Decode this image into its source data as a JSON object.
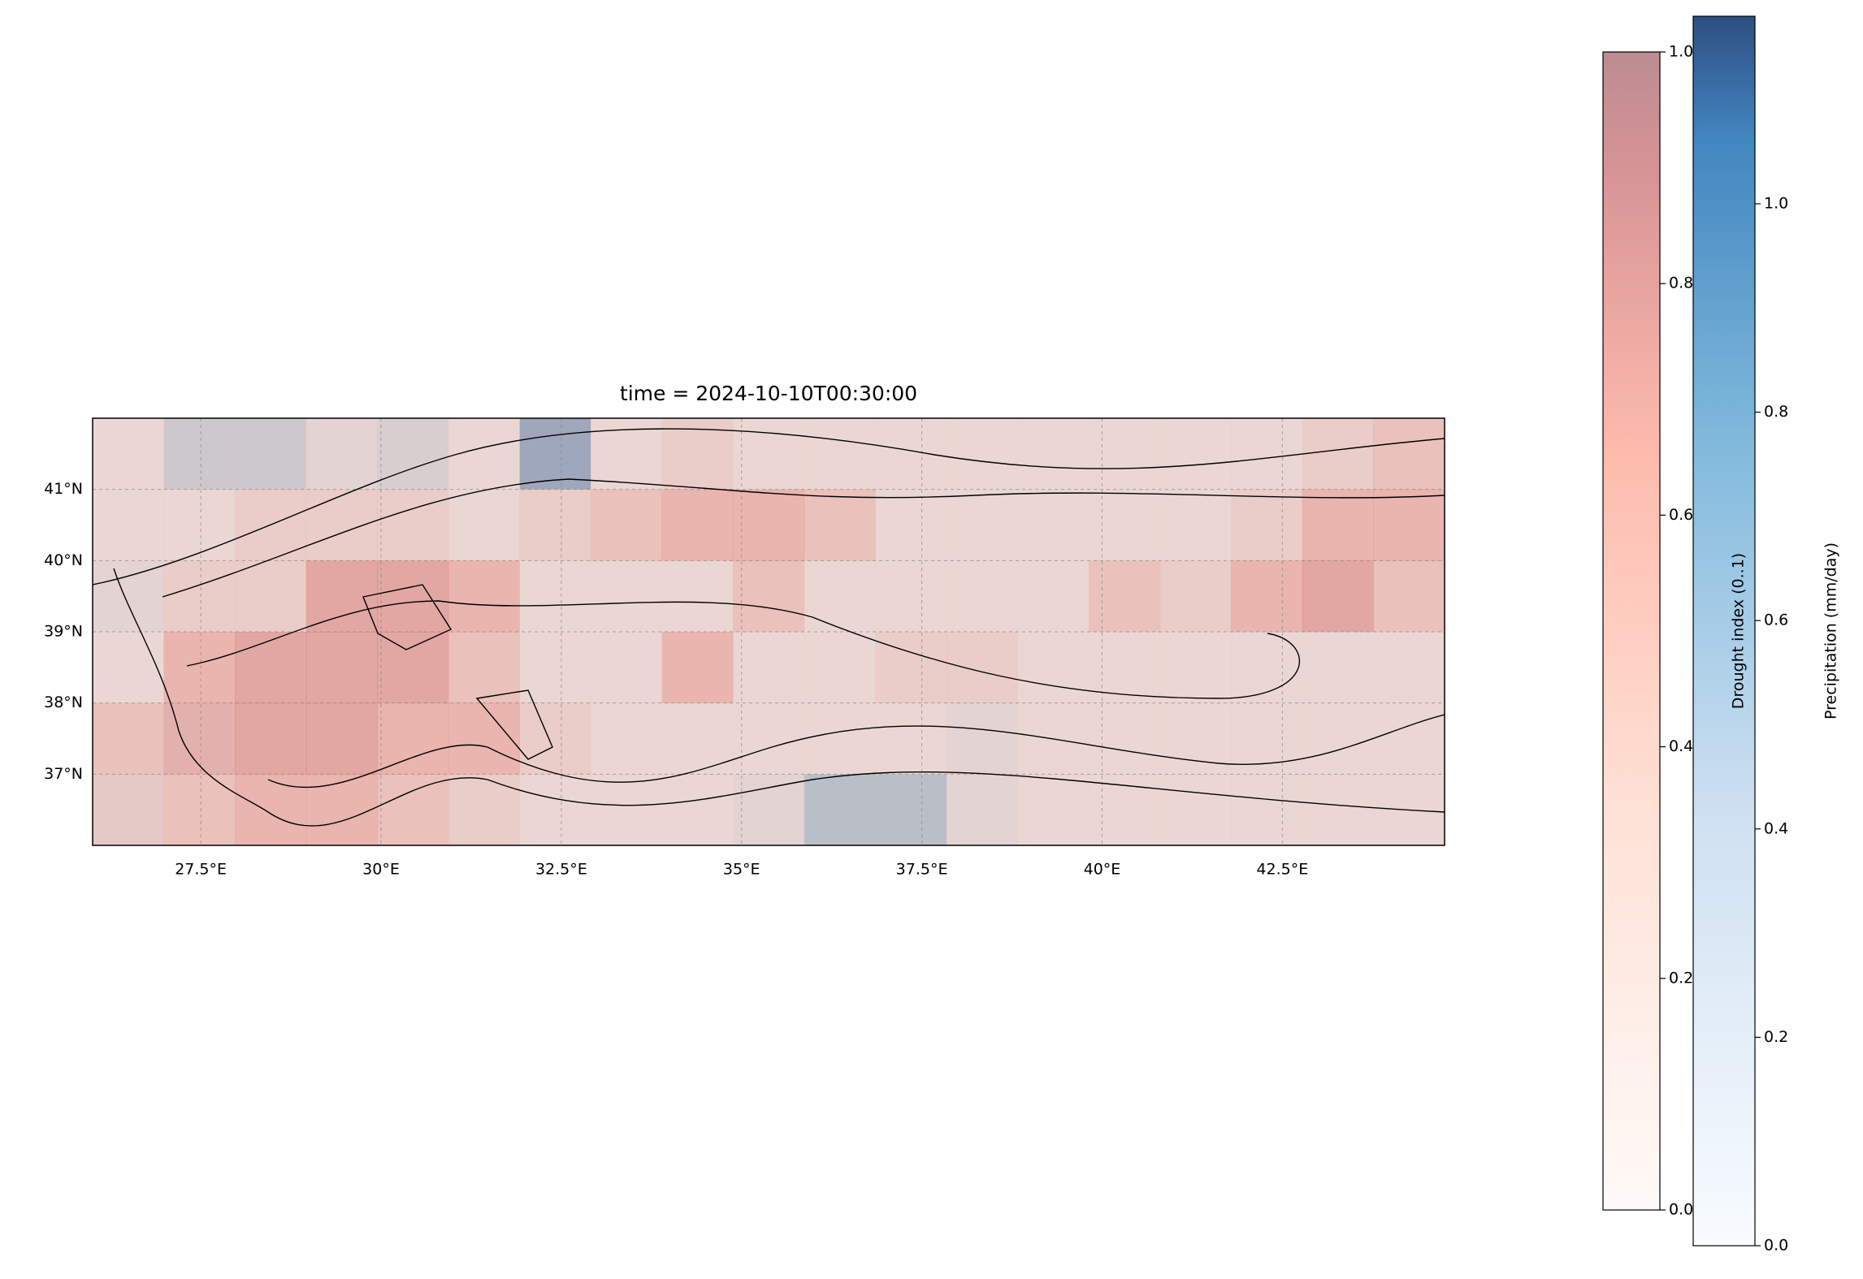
{
  "chart_data": {
    "type": "map",
    "title": "time = 2024-10-10T00:30:00",
    "xlim": [
      26,
      44.75
    ],
    "ylim": [
      36,
      42
    ],
    "xticks": [
      {
        "value": 27.5,
        "label": "27.5°E"
      },
      {
        "value": 30,
        "label": "30°E"
      },
      {
        "value": 32.5,
        "label": "32.5°E"
      },
      {
        "value": 35,
        "label": "35°E"
      },
      {
        "value": 37.5,
        "label": "37.5°E"
      },
      {
        "value": 40,
        "label": "40°E"
      },
      {
        "value": 42.5,
        "label": "42.5°E"
      }
    ],
    "yticks": [
      {
        "value": 37,
        "label": "37°N"
      },
      {
        "value": 38,
        "label": "38°N"
      },
      {
        "value": 39,
        "label": "39°N"
      },
      {
        "value": 40,
        "label": "40°N"
      },
      {
        "value": 41,
        "label": "41°N"
      }
    ],
    "grid": true,
    "drought": {
      "label": "Drought index (0..1)",
      "clim": [
        0,
        1
      ],
      "ticks": [
        {
          "value": 0,
          "label": "0.0"
        },
        {
          "value": 0.2,
          "label": "0.2"
        },
        {
          "value": 0.4,
          "label": "0.4"
        },
        {
          "value": 0.6,
          "label": "0.6"
        },
        {
          "value": 0.8,
          "label": "0.8"
        },
        {
          "value": 1,
          "label": "1.0"
        }
      ],
      "values": [
        [
          0.3,
          0.3,
          0.3,
          0.3,
          0.3,
          0.3,
          0.3,
          0.3,
          0.4,
          0.3,
          0.3,
          0.3,
          0.3,
          0.3,
          0.3,
          0.3,
          0.3,
          0.4,
          0.5
        ],
        [
          0.3,
          0.3,
          0.4,
          0.4,
          0.4,
          0.3,
          0.4,
          0.5,
          0.6,
          0.6,
          0.5,
          0.3,
          0.3,
          0.3,
          0.3,
          0.3,
          0.4,
          0.6,
          0.6
        ],
        [
          0.3,
          0.4,
          0.4,
          0.7,
          0.7,
          0.6,
          0.3,
          0.3,
          0.3,
          0.5,
          0.3,
          0.3,
          0.3,
          0.3,
          0.5,
          0.4,
          0.6,
          0.7,
          0.5
        ],
        [
          0.3,
          0.6,
          0.7,
          0.7,
          0.7,
          0.5,
          0.3,
          0.3,
          0.6,
          0.3,
          0.3,
          0.4,
          0.4,
          0.3,
          0.3,
          0.3,
          0.3,
          0.3,
          0.3
        ],
        [
          0.5,
          0.6,
          0.7,
          0.7,
          0.6,
          0.6,
          0.4,
          0.3,
          0.3,
          0.3,
          0.3,
          0.3,
          0.3,
          0.3,
          0.3,
          0.3,
          0.3,
          0.3,
          0.3
        ],
        [
          0.4,
          0.5,
          0.6,
          0.6,
          0.5,
          0.4,
          0.3,
          0.3,
          0.3,
          0.3,
          0.3,
          0.3,
          0.3,
          0.3,
          0.3,
          0.3,
          0.3,
          0.3,
          0.3
        ]
      ]
    },
    "precipitation": {
      "label": "Precipitation (mm/day)",
      "clim": [
        0,
        1.18
      ],
      "ticks": [
        {
          "value": 0,
          "label": "0.0"
        },
        {
          "value": 0.2,
          "label": "0.2"
        },
        {
          "value": 0.4,
          "label": "0.4"
        },
        {
          "value": 0.6,
          "label": "0.6"
        },
        {
          "value": 0.8,
          "label": "0.8"
        },
        {
          "value": 1,
          "label": "1.0"
        }
      ],
      "values": [
        [
          0.3,
          0.6,
          0.6,
          0.4,
          0.5,
          0.3,
          1.0,
          0.3,
          0.3,
          0.3,
          0.3,
          0.3,
          0.3,
          0.3,
          0.3,
          0.3,
          0.3,
          0.3,
          0.3
        ],
        [
          0.3,
          0.3,
          0.3,
          0.3,
          0.3,
          0.3,
          0.3,
          0.3,
          0.3,
          0.3,
          0.3,
          0.3,
          0.3,
          0.3,
          0.3,
          0.3,
          0.3,
          0.3,
          0.3
        ],
        [
          0.4,
          0.3,
          0.3,
          0.3,
          0.3,
          0.3,
          0.3,
          0.3,
          0.3,
          0.3,
          0.3,
          0.3,
          0.3,
          0.3,
          0.3,
          0.3,
          0.3,
          0.3,
          0.3
        ],
        [
          0.3,
          0.3,
          0.3,
          0.3,
          0.3,
          0.3,
          0.3,
          0.3,
          0.3,
          0.3,
          0.3,
          0.3,
          0.3,
          0.3,
          0.3,
          0.3,
          0.3,
          0.3,
          0.3
        ],
        [
          0.3,
          0.4,
          0.3,
          0.3,
          0.3,
          0.3,
          0.3,
          0.3,
          0.3,
          0.3,
          0.3,
          0.3,
          0.4,
          0.3,
          0.3,
          0.3,
          0.3,
          0.3,
          0.3
        ],
        [
          0.4,
          0.3,
          0.3,
          0.3,
          0.3,
          0.3,
          0.3,
          0.3,
          0.3,
          0.4,
          0.75,
          0.75,
          0.4,
          0.3,
          0.3,
          0.3,
          0.3,
          0.3,
          0.3
        ]
      ]
    }
  }
}
